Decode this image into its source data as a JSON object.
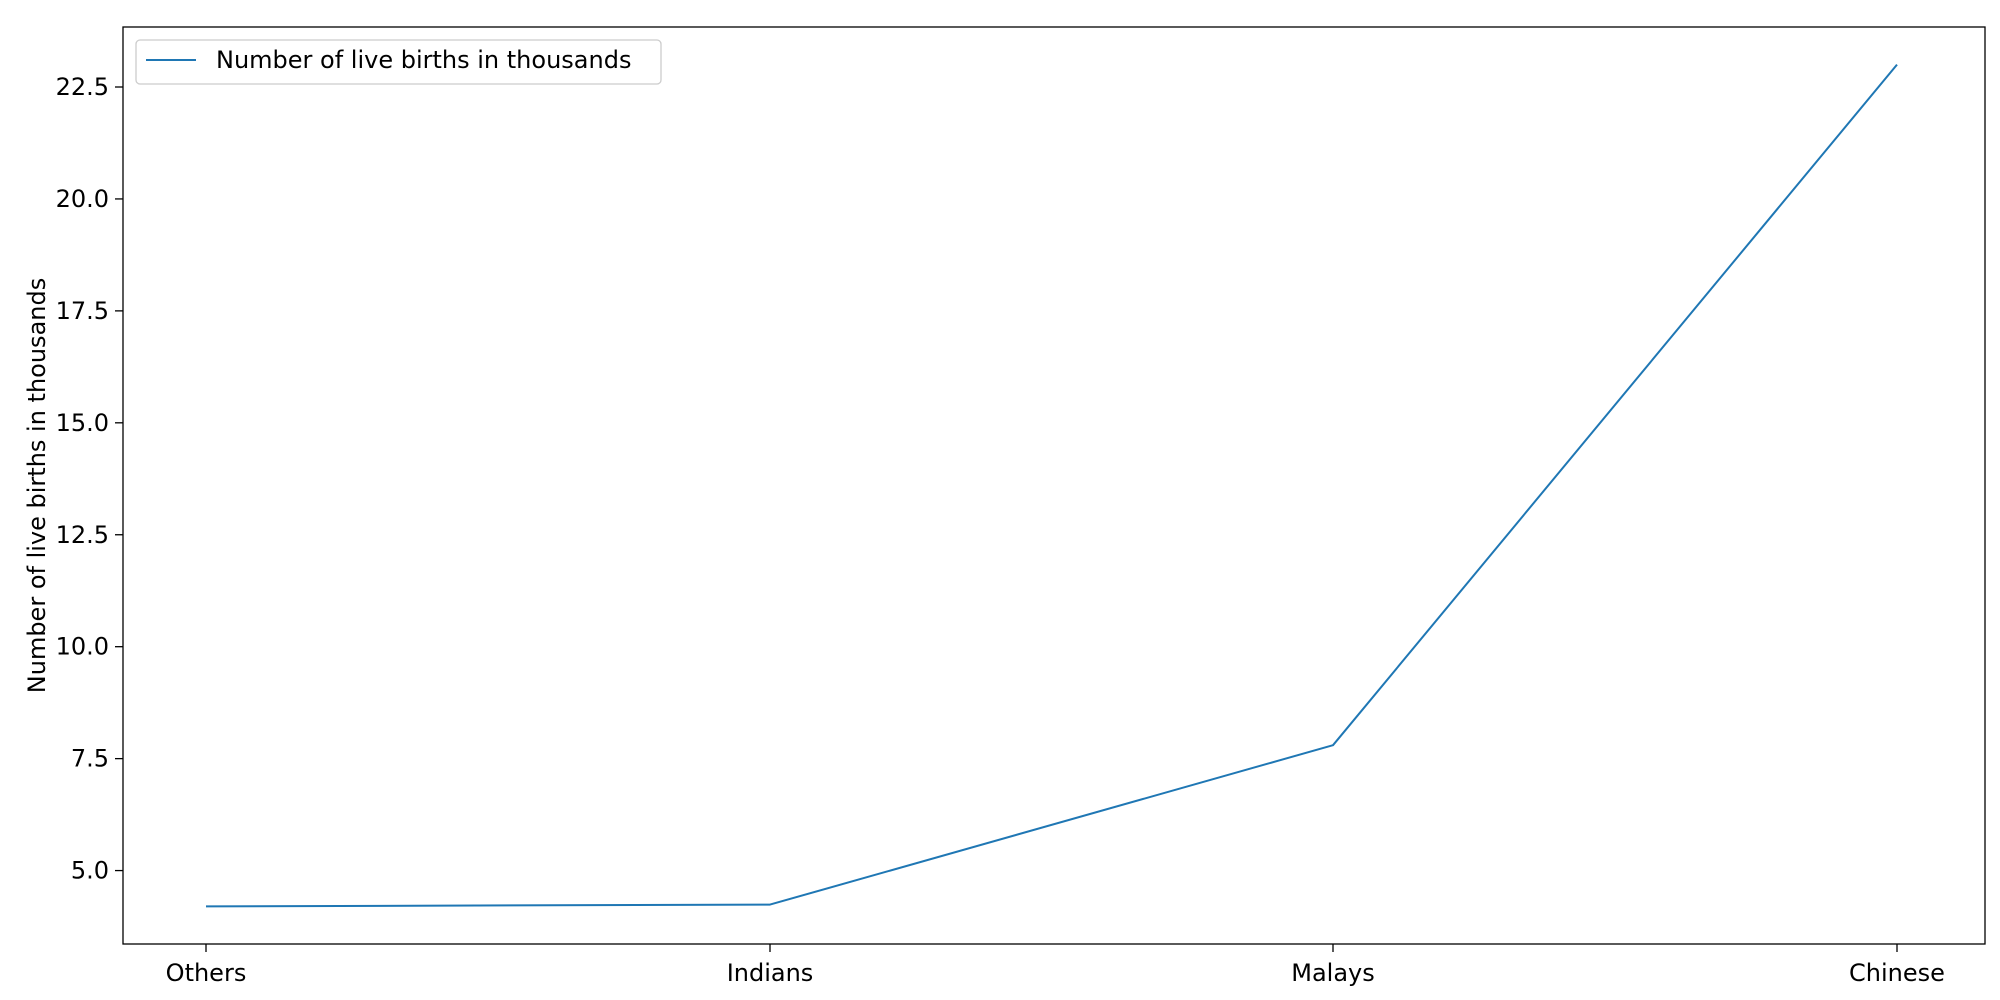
{
  "chart_data": {
    "type": "line",
    "categories": [
      "Others",
      "Indians",
      "Malays",
      "Chinese"
    ],
    "series": [
      {
        "name": "Number of live births in thousands",
        "values": [
          4.2,
          4.24,
          7.8,
          23.0
        ],
        "color": "#1f77b4"
      }
    ],
    "xlabel": "",
    "ylabel": "Number of live births in thousands",
    "ylim": [
      3.36,
      23.84
    ],
    "yticks": [
      5.0,
      7.5,
      10.0,
      12.5,
      15.0,
      17.5,
      20.0,
      22.5
    ],
    "ytick_labels": [
      "5.0",
      "7.5",
      "10.0",
      "12.5",
      "15.0",
      "17.5",
      "20.0",
      "22.5"
    ],
    "grid": false,
    "legend_position": "upper-left"
  }
}
